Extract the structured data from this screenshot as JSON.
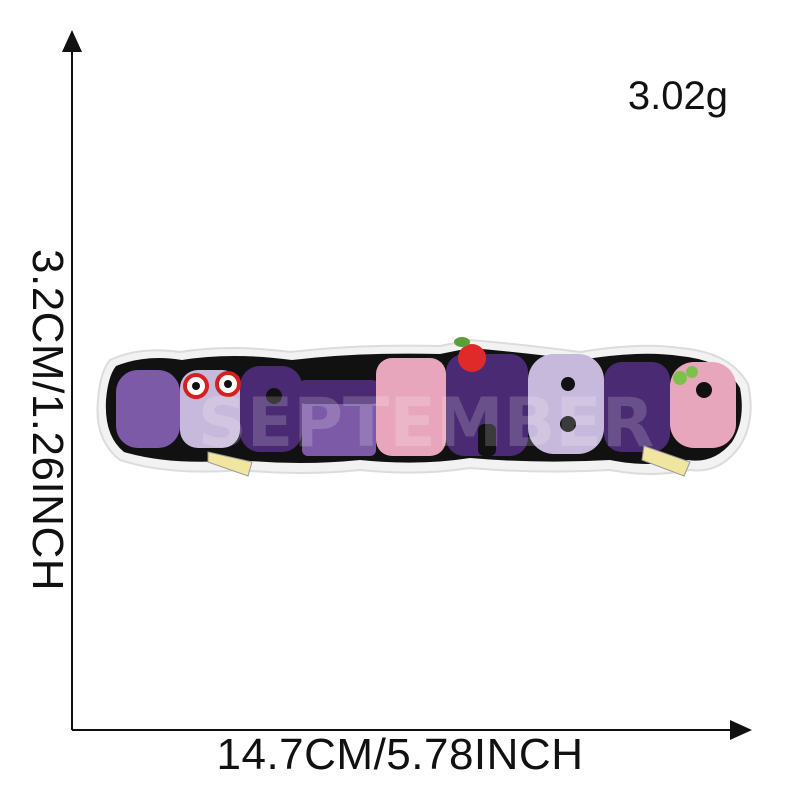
{
  "product": {
    "patch_text": "SEPTEMBER",
    "weight": "3.02g",
    "height_label": "3.2CM/1.26INCH",
    "width_label": "14.7CM/5.78INCH"
  },
  "colors": {
    "dark_purple": "#4a2a72",
    "mid_purple": "#7d5aa8",
    "light_lilac": "#c7b9dc",
    "pink": "#e8a6bd",
    "outline": "#111111",
    "border": "#eeeeee"
  }
}
